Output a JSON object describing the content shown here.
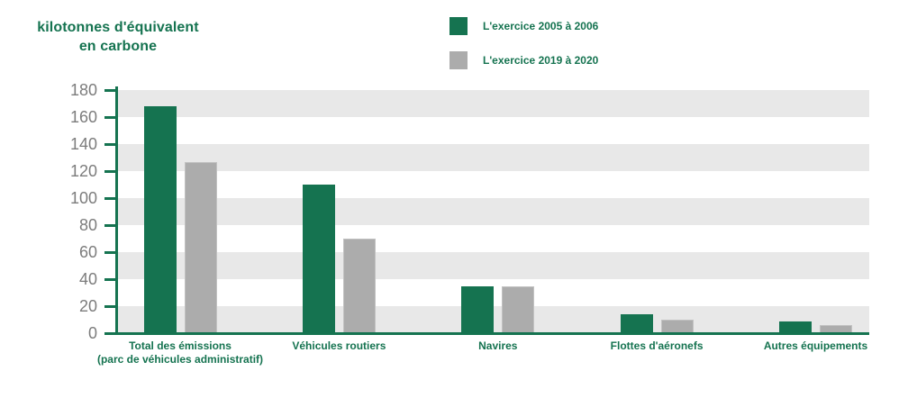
{
  "y_axis_title": {
    "line1": "kilotonnes d'équivalent",
    "line2": "en carbone"
  },
  "legend": {
    "items": [
      {
        "label": "L'exercice 2005 à 2006",
        "color": "#157350"
      },
      {
        "label": "L'exercice 2019 à 2020",
        "color": "#acacac"
      }
    ],
    "position": "top-center"
  },
  "chart_data": {
    "type": "bar",
    "title": "kilotonnes d'équivalent en carbone",
    "categories": [
      "Total des émissions (parc de véhicules administratif)",
      "Véhicules routiers",
      "Navires",
      "Flottes d'aéronefs",
      "Autres équipements"
    ],
    "category_label_lines": [
      [
        "Total des émissions",
        "(parc de véhicules administratif)"
      ],
      [
        "Véhicules routiers"
      ],
      [
        "Navires"
      ],
      [
        "Flottes d'aéronefs"
      ],
      [
        "Autres équipements"
      ]
    ],
    "series": [
      {
        "name": "L'exercice 2005 à 2006",
        "color": "#157350",
        "values": [
          168,
          110,
          35,
          14,
          9
        ]
      },
      {
        "name": "L'exercice 2019 à 2020",
        "color": "#acacac",
        "values": [
          127,
          70,
          35,
          10,
          6
        ]
      }
    ],
    "xlabel": "",
    "ylabel": "kilotonnes d'équivalent en carbone",
    "ylim": [
      0,
      180
    ],
    "yticks": [
      0,
      20,
      40,
      60,
      80,
      100,
      120,
      140,
      160,
      180
    ],
    "grid": "horizontal-bands",
    "band_colors": [
      "#e8e8e8",
      "#ffffff"
    ],
    "axis_color": "#157350",
    "tick_label_color": "#7c7c7c",
    "legend_position": "top-center"
  }
}
